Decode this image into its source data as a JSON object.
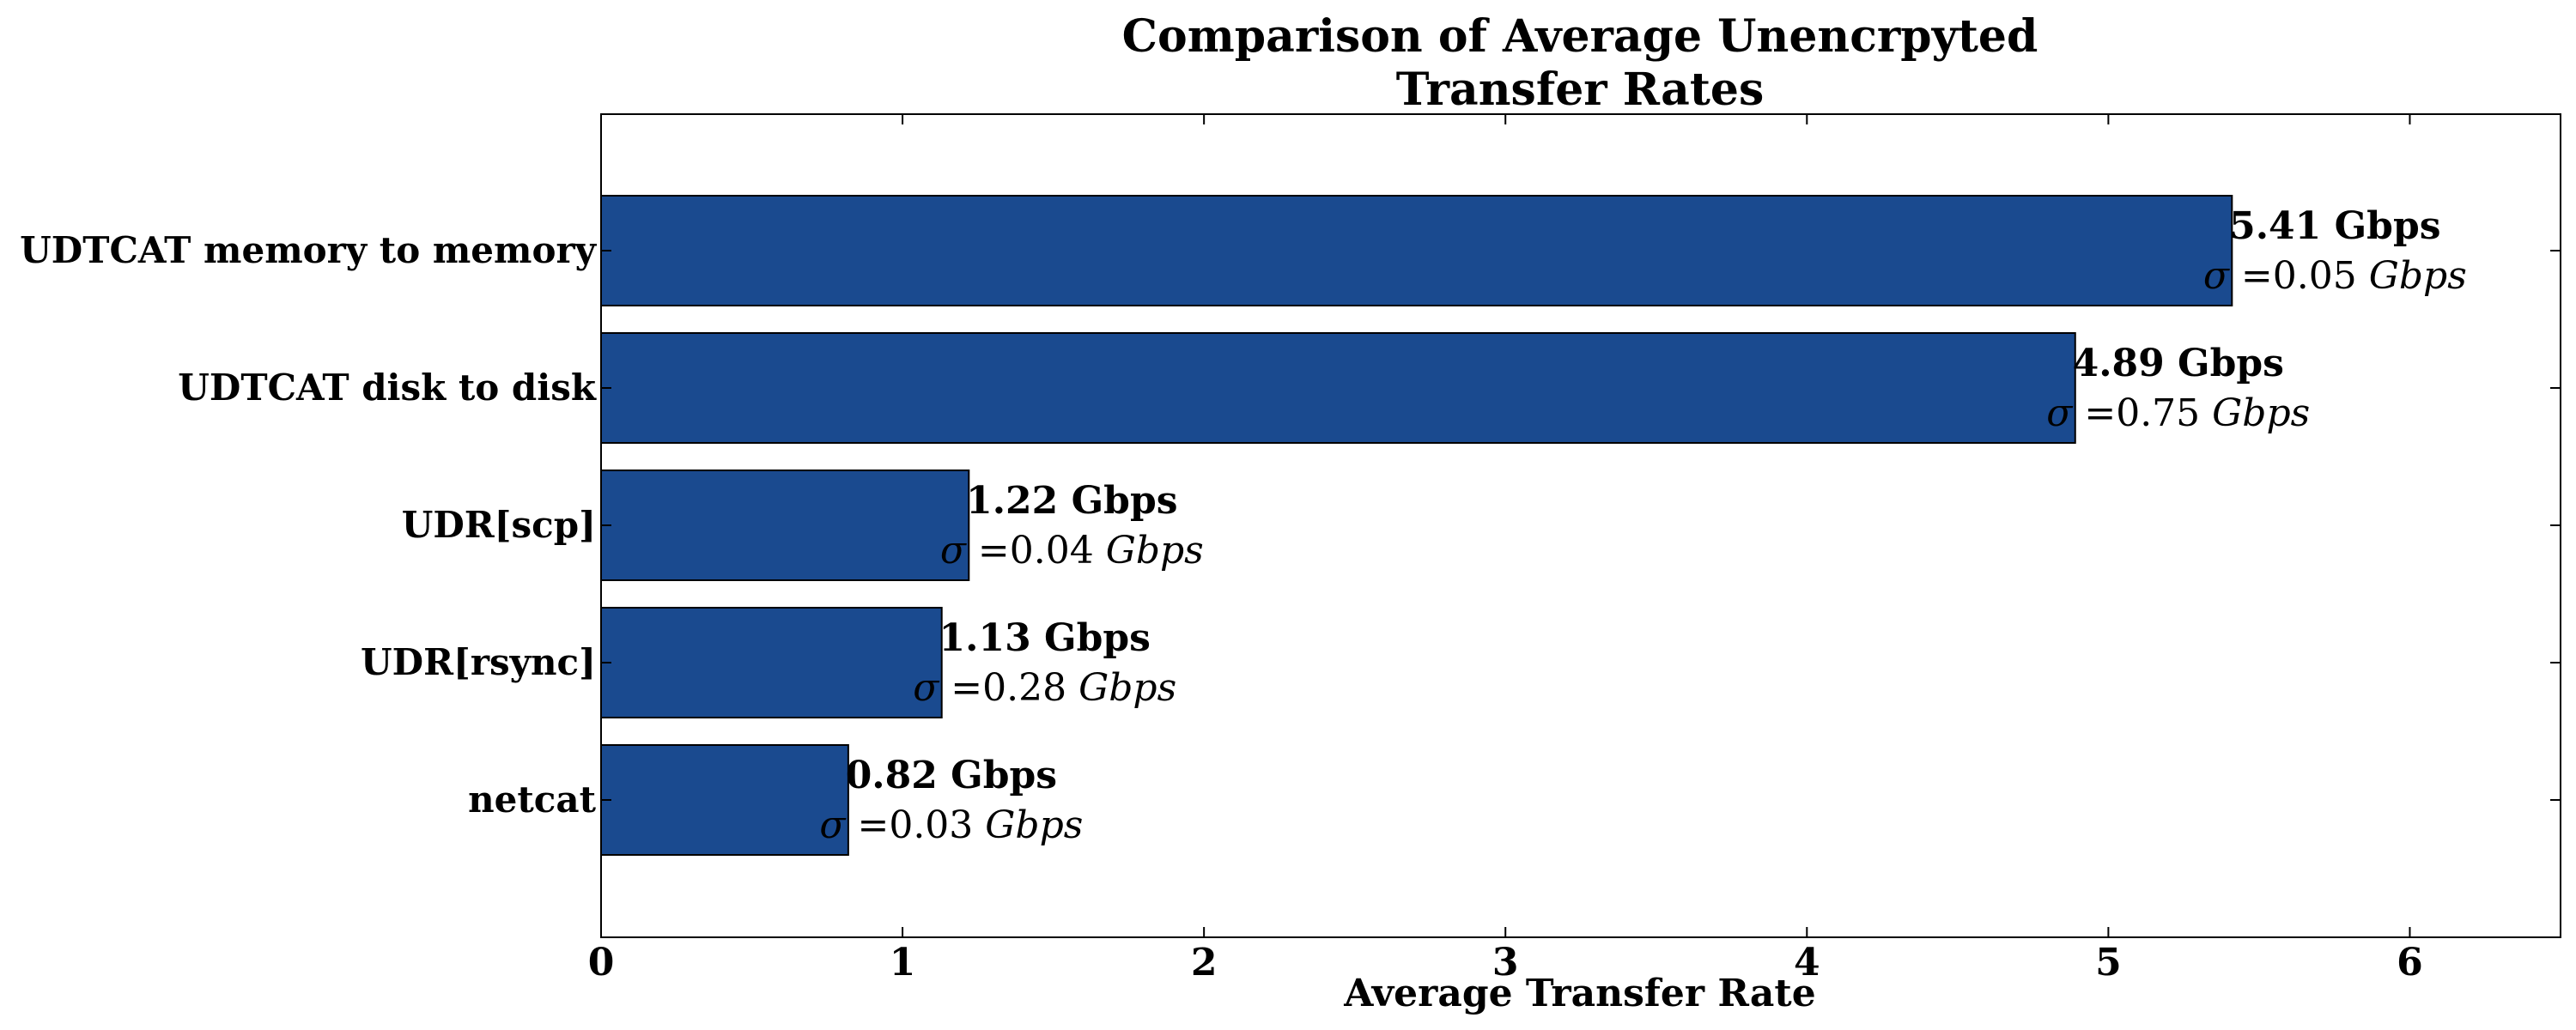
{
  "chart_data": {
    "type": "bar",
    "orientation": "horizontal",
    "title": "Comparison of Average Unencrpyted\nTransfer Rates",
    "xlabel": "Average Transfer Rate",
    "ylabel": "",
    "xlim": [
      0,
      6.5
    ],
    "xticks": [
      0,
      1,
      2,
      3,
      4,
      5,
      6
    ],
    "grid": false,
    "categories": [
      "UDTCAT memory to memory",
      "UDTCAT disk to disk",
      "UDR[scp]",
      "UDR[rsync]",
      "netcat"
    ],
    "values": [
      5.41,
      4.89,
      1.22,
      1.13,
      0.82
    ],
    "std_devs": [
      0.05,
      0.75,
      0.04,
      0.28,
      0.03
    ],
    "value_labels": [
      "5.41 Gbps",
      "4.89 Gbps",
      "1.22 Gbps",
      "1.13 Gbps",
      "0.82 Gbps"
    ],
    "sigma_symbol": "σ",
    "sigma_values": [
      "=0.05",
      "=0.75",
      "=0.04",
      "=0.28",
      "=0.03"
    ],
    "sigma_unit": "Gbps",
    "bar_color": "#1a4a8f"
  }
}
